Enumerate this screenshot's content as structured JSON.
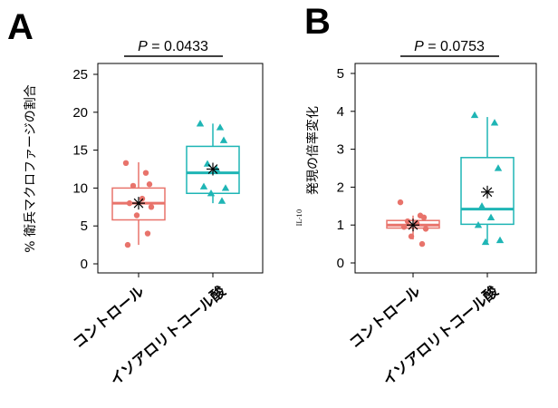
{
  "chart_data": [
    {
      "panel": "A",
      "type": "box",
      "ylabel": "% 衛兵マクロファージの割合",
      "ylim": [
        0,
        25
      ],
      "yticks": [
        "0",
        "5",
        "10",
        "15",
        "20",
        "25"
      ],
      "ytick_values": [
        0,
        5,
        10,
        15,
        20,
        25
      ],
      "categories": [
        "コントロール",
        "イソアロリトコール酸"
      ],
      "pvalue_label": "P",
      "pvalue_text": " = 0.0433",
      "groups": [
        {
          "name": "コントロール",
          "color": "#E8736B",
          "marker": "circle",
          "box": {
            "min": 2.5,
            "q1": 5.8,
            "median": 8.0,
            "q3": 10.0,
            "max": 13.4,
            "mean": 8.0
          },
          "points": [
            13.3,
            12.0,
            10.5,
            10.3,
            8.6,
            8.0,
            7.5,
            6.4,
            4.0,
            2.5
          ]
        },
        {
          "name": "イソアロリトコール酸",
          "color": "#1FB5B5",
          "marker": "triangle",
          "box": {
            "min": 8.0,
            "q1": 9.3,
            "median": 12.0,
            "q3": 15.5,
            "max": 18.5,
            "mean": 12.5
          },
          "points": [
            18.5,
            18.0,
            16.3,
            13.2,
            12.5,
            10.2,
            10.0,
            9.3,
            8.3
          ]
        }
      ]
    },
    {
      "panel": "B",
      "type": "box",
      "ylabel_prefix": "IL-10",
      "ylabel": "発現の倍率変化",
      "ylim": [
        0,
        5
      ],
      "yticks": [
        "0",
        "1",
        "2",
        "3",
        "4",
        "5"
      ],
      "ytick_values": [
        0,
        1,
        2,
        3,
        4,
        5
      ],
      "categories": [
        "コントロール",
        "イソアロリトコール酸"
      ],
      "pvalue_label": "P",
      "pvalue_text": " = 0.0753",
      "groups": [
        {
          "name": "コントロール",
          "color": "#E8736B",
          "marker": "circle",
          "box": {
            "min": 0.62,
            "q1": 0.92,
            "median": 1.0,
            "q3": 1.12,
            "max": 1.25,
            "mean": 1.0
          },
          "points": [
            1.6,
            1.25,
            1.2,
            1.1,
            1.05,
            0.95,
            0.9,
            0.7,
            0.5
          ]
        },
        {
          "name": "イソアロリトコール酸",
          "color": "#1FB5B5",
          "marker": "triangle",
          "box": {
            "min": 0.55,
            "q1": 1.02,
            "median": 1.42,
            "q3": 2.78,
            "max": 3.85,
            "mean": 1.87
          },
          "points": [
            3.9,
            3.7,
            2.5,
            1.5,
            1.2,
            1.0,
            0.6,
            0.55
          ]
        }
      ]
    }
  ]
}
